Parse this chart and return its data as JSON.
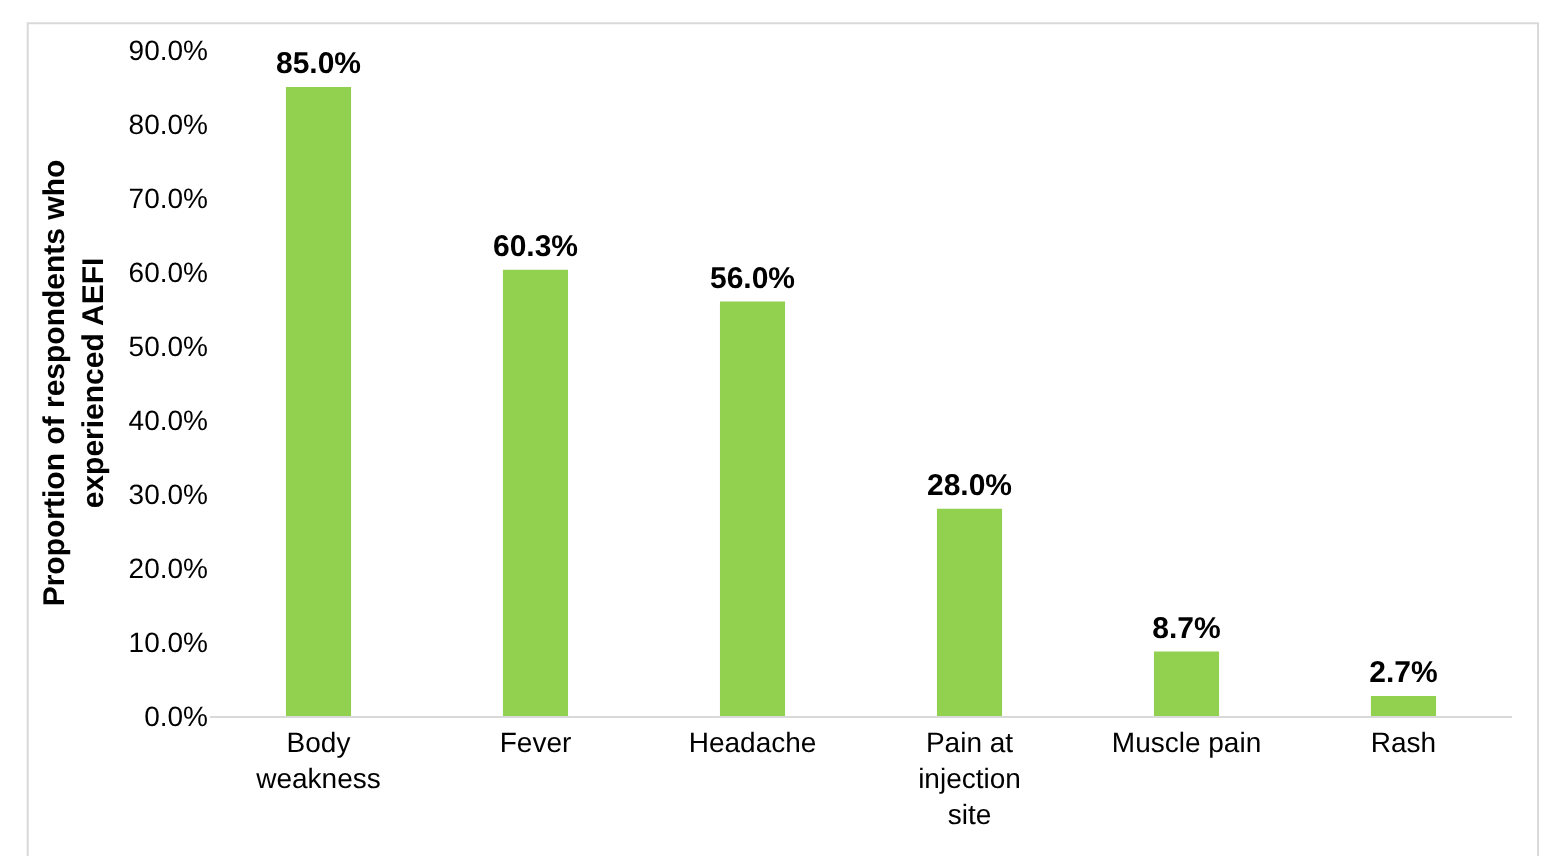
{
  "chart_data": {
    "type": "bar",
    "ylabel": "Proportion of respondents who experienced AEFI",
    "categories": [
      "Body weakness",
      "Fever",
      "Headache",
      "Pain at injection site",
      "Muscle pain",
      "Rash"
    ],
    "values": [
      85.0,
      60.3,
      56.0,
      28.0,
      8.7,
      2.7
    ],
    "value_labels": [
      "85.0%",
      "60.3%",
      "56.0%",
      "28.0%",
      "8.7%",
      "2.7%"
    ],
    "color": "#92d050",
    "ylim": [
      0,
      90
    ],
    "yticks": [
      {
        "value": 0,
        "label": "0.0%"
      },
      {
        "value": 10,
        "label": "10.0%"
      },
      {
        "value": 20,
        "label": "20.0%"
      },
      {
        "value": 30,
        "label": "30.0%"
      },
      {
        "value": 40,
        "label": "40.0%"
      },
      {
        "value": 50,
        "label": "50.0%"
      },
      {
        "value": 60,
        "label": "60.0%"
      },
      {
        "value": 70,
        "label": "70.0%"
      },
      {
        "value": 80,
        "label": "80.0%"
      },
      {
        "value": 90,
        "label": "90.0%"
      }
    ],
    "legend": false
  }
}
